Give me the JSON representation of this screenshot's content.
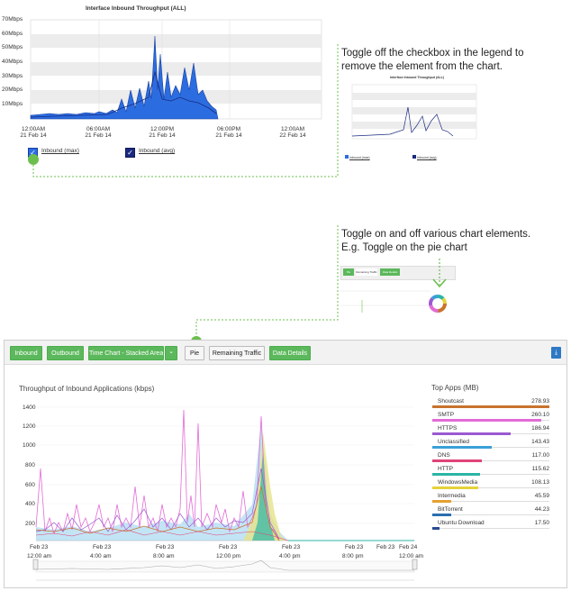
{
  "top_chart": {
    "title": "Interface Inbound Throughput (ALL)",
    "y_ticks": [
      "70Mbps",
      "60Mbps",
      "50Mbps",
      "40Mbps",
      "30Mbps",
      "20Mbps",
      "10Mbps"
    ],
    "x_ticks": [
      {
        "time": "12:00AM",
        "date": "21 Feb 14"
      },
      {
        "time": "06:00AM",
        "date": "21 Feb 14"
      },
      {
        "time": "12:00PM",
        "date": "21 Feb 14"
      },
      {
        "time": "06:00PM",
        "date": "21 Feb 14"
      },
      {
        "time": "12:00AM",
        "date": "22 Feb 14"
      }
    ],
    "legend": [
      {
        "label": "Inbound (max)",
        "checked": true
      },
      {
        "label": "Inbound (avg)",
        "checked": true
      }
    ],
    "colors": {
      "max": "#2b6de0",
      "avg": "#1a2a80"
    }
  },
  "callout1": {
    "line1": "Toggle off the checkbox in the legend to",
    "line2": "remove the element from the chart.",
    "mini_title": "Interface Inbound Throughput (ALL)",
    "mini_legend": [
      "Inbound (max)",
      "Inbound (avg)"
    ]
  },
  "callout2": {
    "line1": "Toggle on and off various chart elements.",
    "line2": "E.g. Toggle on the pie chart",
    "mini_buttons": [
      "Pie",
      "Remaining Traffic",
      "Data Details"
    ]
  },
  "toolbar": {
    "inbound": "Inbound",
    "outbound": "Outbound",
    "time_chart": "Time Chart - Stacked Area",
    "caret": "⌄",
    "pie": "Pie",
    "remaining": "Remaining Traffic",
    "data_details": "Data Details",
    "pdf_icon": "pdf-icon"
  },
  "main_chart": {
    "title": "Throughput of Inbound Applications (kbps)",
    "y_ticks": [
      "1400",
      "1200",
      "1000",
      "800",
      "600",
      "400",
      "200"
    ],
    "x_dates": [
      "Feb 23",
      "Feb 23",
      "Feb 23",
      "Feb 23",
      "Feb 23",
      "Feb 23",
      "Feb 23",
      "Feb 24"
    ],
    "nav_times": [
      "12:00 am",
      "4:00 am",
      "8:00 am",
      "12:00 pm",
      "4:00 pm",
      "8:00 pm",
      "12:00 am"
    ]
  },
  "top_apps": {
    "title": "Top Apps (MB)",
    "items": [
      {
        "name": "Shoutcast",
        "value": "278.93",
        "color": "#c8732d",
        "pct": 1.0
      },
      {
        "name": "SMTP",
        "value": "260.10",
        "color": "#e26bd6",
        "pct": 0.93
      },
      {
        "name": "HTTPS",
        "value": "186.94",
        "color": "#9b59d0",
        "pct": 0.67
      },
      {
        "name": "Unclassified",
        "value": "143.43",
        "color": "#3aa0d8",
        "pct": 0.51
      },
      {
        "name": "DNS",
        "value": "117.00",
        "color": "#e0447a",
        "pct": 0.42
      },
      {
        "name": "HTTP",
        "value": "115.62",
        "color": "#2bb5a5",
        "pct": 0.41
      },
      {
        "name": "WindowsMedia",
        "value": "108.13",
        "color": "#e6d23a",
        "pct": 0.39
      },
      {
        "name": "Intermedia",
        "value": "45.59",
        "color": "#e6a030",
        "pct": 0.16
      },
      {
        "name": "BitTorrent",
        "value": "44.23",
        "color": "#2a6fb0",
        "pct": 0.16
      },
      {
        "name": "Ubuntu Download",
        "value": "17.50",
        "color": "#2a4a90",
        "pct": 0.06
      }
    ]
  }
}
